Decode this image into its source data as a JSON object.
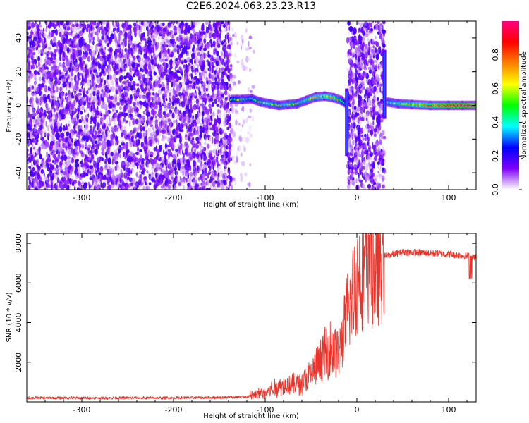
{
  "page": {
    "title": "C2E6.2024.063.23.23.R13"
  },
  "chart_data": [
    {
      "id": "spectrogram",
      "type": "heatmap",
      "xlabel": "Height of straight line (km)",
      "ylabel": "Frequency (Hz)",
      "xlim": [
        -360,
        130
      ],
      "ylim": [
        -50,
        50
      ],
      "xticks": [
        -300,
        -200,
        -100,
        0,
        100
      ],
      "yticks": [
        -40,
        -20,
        0,
        20,
        40
      ],
      "colorbar": {
        "label": "Normalized spectral amplitude",
        "range": [
          0,
          1
        ],
        "ticks": [
          0.0,
          0.2,
          0.4,
          0.6,
          0.8
        ],
        "tick_labels": [
          "0.0",
          "0.2",
          "0.4",
          "0.6",
          "0.8"
        ],
        "colors": [
          "#ffffff",
          "#7f00ff",
          "#0000ff",
          "#00ffff",
          "#00ff00",
          "#ffff00",
          "#ff8000",
          "#ff0000",
          "#ff0080"
        ]
      },
      "noise_regions": [
        {
          "x_from": -360,
          "x_to": -137,
          "density": "high"
        },
        {
          "x_from": -137,
          "x_to": -112,
          "density": "low"
        },
        {
          "x_from": -10,
          "x_to": 30,
          "density": "high"
        }
      ],
      "signal_track": [
        {
          "x": -137,
          "y": 3.5,
          "amp": 0.45
        },
        {
          "x": -125,
          "y": 3.5,
          "amp": 0.55
        },
        {
          "x": -115,
          "y": 4,
          "amp": 0.5
        },
        {
          "x": -105,
          "y": 2,
          "amp": 0.55
        },
        {
          "x": -95,
          "y": 1,
          "amp": 0.6
        },
        {
          "x": -85,
          "y": 0,
          "amp": 0.55
        },
        {
          "x": -75,
          "y": 0.5,
          "amp": 0.6
        },
        {
          "x": -65,
          "y": 1,
          "amp": 0.55
        },
        {
          "x": -55,
          "y": 3,
          "amp": 0.6
        },
        {
          "x": -45,
          "y": 5,
          "amp": 0.65
        },
        {
          "x": -35,
          "y": 5.5,
          "amp": 0.7
        },
        {
          "x": -25,
          "y": 4.5,
          "amp": 0.65
        },
        {
          "x": -17,
          "y": 3,
          "amp": 0.55
        },
        {
          "x": -12,
          "y": 1,
          "amp": 0.4
        },
        {
          "x": 33,
          "y": 2,
          "amp": 0.55
        },
        {
          "x": 45,
          "y": 1,
          "amp": 0.6
        },
        {
          "x": 60,
          "y": 0.5,
          "amp": 0.65
        },
        {
          "x": 80,
          "y": 0,
          "amp": 0.75
        },
        {
          "x": 100,
          "y": 0,
          "amp": 0.85
        },
        {
          "x": 115,
          "y": 0,
          "amp": 0.9
        },
        {
          "x": 130,
          "y": 0,
          "amp": 0.95
        }
      ],
      "vertical_spikes": [
        {
          "x": -11,
          "y_from": -30,
          "y_to": 10
        },
        {
          "x": 30,
          "y_from": -8,
          "y_to": 33
        }
      ]
    },
    {
      "id": "snr",
      "type": "line",
      "xlabel": "Height of straight line (km)",
      "ylabel": "SNR (10 * v/v)",
      "xlim": [
        -360,
        130
      ],
      "ylim": [
        0,
        8500
      ],
      "xticks": [
        -300,
        -200,
        -100,
        0,
        100
      ],
      "yticks": [
        2000,
        4000,
        6000,
        8000
      ],
      "series": [
        {
          "color": "#e8342a",
          "x": [
            -360,
            -300,
            -250,
            -200,
            -150,
            -120,
            -110,
            -100,
            -90,
            -80,
            -70,
            -60,
            -50,
            -40,
            -30,
            -20,
            -15,
            -10,
            -5,
            0,
            5,
            10,
            15,
            20,
            25,
            30,
            40,
            50,
            60,
            80,
            100,
            120,
            130
          ],
          "y": [
            200,
            200,
            200,
            200,
            220,
            250,
            350,
            450,
            650,
            800,
            850,
            900,
            1300,
            1900,
            2600,
            2200,
            3200,
            4400,
            5200,
            5900,
            6400,
            6500,
            6900,
            6700,
            6800,
            7350,
            7450,
            7550,
            7550,
            7500,
            7450,
            7350,
            7300
          ]
        }
      ]
    }
  ]
}
